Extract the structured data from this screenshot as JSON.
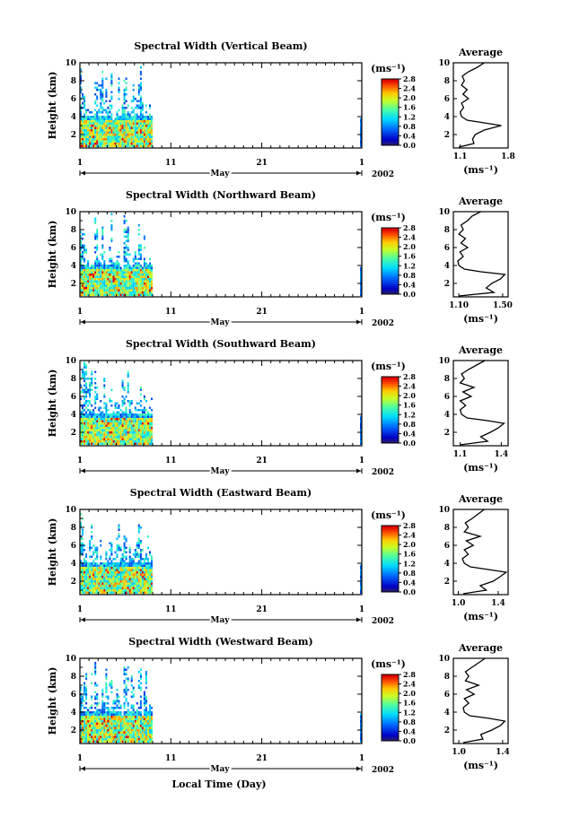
{
  "figure": {
    "time_axis_label": "Local Time (Day)",
    "month_label": "May",
    "year_label": "2002",
    "height_label": "Height (km)",
    "colorbar_unit": "(ms⁻¹)",
    "profile_title": "Average",
    "profile_xlabel": "(ms⁻¹)"
  },
  "chart_data": [
    {
      "type": "heatmap",
      "title": "Spectral Width (Vertical Beam)",
      "ylabel": "Height (km)",
      "ylim": [
        0.5,
        10
      ],
      "yticks": [
        2,
        4,
        6,
        8,
        10
      ],
      "xlim": [
        1,
        32
      ],
      "xticks": [
        "1",
        "11",
        "21",
        "1"
      ],
      "xlabel": "May",
      "year": "2002",
      "data_days": [
        [
          1,
          9
        ],
        [
          31.8,
          32
        ]
      ],
      "colorbar": {
        "unit": "(ms⁻¹)",
        "range": [
          0,
          2.8
        ],
        "ticks": [
          "0.0",
          "0.4",
          "0.8",
          "1.2",
          "1.6",
          "2.0",
          "2.4",
          "2.8"
        ]
      },
      "profile": {
        "type": "line",
        "title": "Average",
        "xlabel": "(ms⁻¹)",
        "xlim": [
          1.0,
          1.8
        ],
        "xticks": [
          "1.1",
          "1.8"
        ],
        "ylim": [
          0.5,
          10
        ],
        "yticks": [
          2,
          4,
          6,
          8,
          10
        ],
        "height": [
          0.6,
          1.0,
          1.5,
          2.0,
          2.5,
          3.0,
          3.3,
          3.6,
          4.0,
          4.5,
          5.0,
          5.5,
          6.0,
          6.5,
          7.0,
          7.5,
          8.0,
          8.5,
          9.0,
          9.5,
          10.0
        ],
        "value": [
          1.08,
          1.3,
          1.28,
          1.32,
          1.45,
          1.7,
          1.45,
          1.2,
          1.12,
          1.1,
          1.15,
          1.12,
          1.22,
          1.14,
          1.2,
          1.12,
          1.16,
          1.13,
          1.22,
          1.35,
          1.45
        ]
      }
    },
    {
      "type": "heatmap",
      "title": "Spectral Width (Northward Beam)",
      "ylabel": "Height (km)",
      "ylim": [
        0.5,
        10
      ],
      "yticks": [
        2,
        4,
        6,
        8,
        10
      ],
      "xlim": [
        1,
        32
      ],
      "xticks": [
        "1",
        "11",
        "21",
        "1"
      ],
      "xlabel": "May",
      "year": "2002",
      "data_days": [
        [
          1,
          9
        ],
        [
          31.8,
          32
        ]
      ],
      "colorbar": {
        "unit": "(ms⁻¹)",
        "range": [
          0,
          2.8
        ],
        "ticks": [
          "0.0",
          "0.4",
          "0.8",
          "1.2",
          "1.6",
          "2.0",
          "2.4",
          "2.8"
        ]
      },
      "profile": {
        "type": "line",
        "title": "Average",
        "xlabel": "(ms⁻¹)",
        "xlim": [
          1.05,
          1.55
        ],
        "xticks": [
          "1.10",
          "1.50"
        ],
        "ylim": [
          0.5,
          10
        ],
        "yticks": [
          2,
          4,
          6,
          8,
          10
        ],
        "height": [
          0.6,
          1.0,
          1.5,
          2.0,
          2.5,
          3.0,
          3.3,
          3.6,
          4.0,
          4.5,
          5.0,
          5.5,
          6.0,
          6.5,
          7.0,
          7.5,
          8.0,
          8.5,
          9.0,
          9.5,
          10.0
        ],
        "value": [
          1.1,
          1.42,
          1.35,
          1.4,
          1.48,
          1.52,
          1.3,
          1.15,
          1.1,
          1.09,
          1.14,
          1.11,
          1.18,
          1.12,
          1.16,
          1.1,
          1.14,
          1.12,
          1.18,
          1.22,
          1.3
        ]
      }
    },
    {
      "type": "heatmap",
      "title": "Spectral Width (Southward Beam)",
      "ylabel": "Height (km)",
      "ylim": [
        0.5,
        10
      ],
      "yticks": [
        2,
        4,
        6,
        8,
        10
      ],
      "xlim": [
        1,
        32
      ],
      "xticks": [
        "1",
        "11",
        "21",
        "1"
      ],
      "xlabel": "May",
      "year": "2002",
      "data_days": [
        [
          1,
          9
        ],
        [
          31.8,
          32
        ]
      ],
      "colorbar": {
        "unit": "(ms⁻¹)",
        "range": [
          0,
          2.8
        ],
        "ticks": [
          "0.0",
          "0.4",
          "0.8",
          "1.2",
          "1.6",
          "2.0",
          "2.4",
          "2.8"
        ]
      },
      "profile": {
        "type": "line",
        "title": "Average",
        "xlabel": "(ms⁻¹)",
        "xlim": [
          1.05,
          1.45
        ],
        "xticks": [
          "1.1",
          "1.4"
        ],
        "ylim": [
          0.5,
          10
        ],
        "yticks": [
          2,
          4,
          6,
          8,
          10
        ],
        "height": [
          0.6,
          1.0,
          1.5,
          2.0,
          2.5,
          3.0,
          3.3,
          3.6,
          4.0,
          4.5,
          5.0,
          5.5,
          6.0,
          6.5,
          7.0,
          7.5,
          8.0,
          8.5,
          9.0,
          9.5,
          10.0
        ],
        "value": [
          1.1,
          1.3,
          1.25,
          1.32,
          1.38,
          1.42,
          1.3,
          1.15,
          1.11,
          1.1,
          1.14,
          1.1,
          1.18,
          1.12,
          1.2,
          1.1,
          1.13,
          1.11,
          1.16,
          1.22,
          1.28
        ]
      }
    },
    {
      "type": "heatmap",
      "title": "Spectral Width (Eastward Beam)",
      "ylabel": "Height (km)",
      "ylim": [
        0.5,
        10
      ],
      "yticks": [
        2,
        4,
        6,
        8,
        10
      ],
      "xlim": [
        1,
        32
      ],
      "xticks": [
        "1",
        "11",
        "21",
        "1"
      ],
      "xlabel": "May",
      "year": "2002",
      "data_days": [
        [
          1,
          9
        ],
        [
          31.8,
          32
        ]
      ],
      "colorbar": {
        "unit": "(ms⁻¹)",
        "range": [
          0,
          2.8
        ],
        "ticks": [
          "0.0",
          "0.4",
          "0.8",
          "1.2",
          "1.6",
          "2.0",
          "2.4",
          "2.8"
        ]
      },
      "profile": {
        "type": "line",
        "title": "Average",
        "xlabel": "(ms⁻¹)",
        "xlim": [
          0.95,
          1.5
        ],
        "xticks": [
          "1.0",
          "1.4"
        ],
        "ylim": [
          0.5,
          10
        ],
        "yticks": [
          2,
          4,
          6,
          8,
          10
        ],
        "height": [
          0.6,
          1.0,
          1.5,
          2.0,
          2.5,
          3.0,
          3.3,
          3.6,
          4.0,
          4.5,
          5.0,
          5.5,
          6.0,
          6.5,
          7.0,
          7.5,
          8.0,
          8.5,
          9.0,
          9.5,
          10.0
        ],
        "value": [
          1.05,
          1.28,
          1.22,
          1.35,
          1.42,
          1.48,
          1.3,
          1.12,
          1.06,
          1.04,
          1.1,
          1.06,
          1.15,
          1.08,
          1.22,
          1.06,
          1.1,
          1.07,
          1.14,
          1.2,
          1.26
        ]
      }
    },
    {
      "type": "heatmap",
      "title": "Spectral Width (Westward Beam)",
      "ylabel": "Height (km)",
      "ylim": [
        0.5,
        10
      ],
      "yticks": [
        2,
        4,
        6,
        8,
        10
      ],
      "xlim": [
        1,
        32
      ],
      "xticks": [
        "1",
        "11",
        "21",
        "1"
      ],
      "xlabel": "May",
      "year": "2002",
      "data_days": [
        [
          1,
          9
        ],
        [
          31.8,
          32
        ]
      ],
      "colorbar": {
        "unit": "(ms⁻¹)",
        "range": [
          0,
          2.8
        ],
        "ticks": [
          "0.0",
          "0.4",
          "0.8",
          "1.2",
          "1.6",
          "2.0",
          "2.4",
          "2.8"
        ]
      },
      "profile": {
        "type": "line",
        "title": "Average",
        "xlabel": "(ms⁻¹)",
        "xlim": [
          0.95,
          1.45
        ],
        "xticks": [
          "1.0",
          "1.4"
        ],
        "ylim": [
          0.5,
          10
        ],
        "yticks": [
          2,
          4,
          6,
          8,
          10
        ],
        "height": [
          0.6,
          1.0,
          1.5,
          2.0,
          2.5,
          3.0,
          3.3,
          3.6,
          4.0,
          4.5,
          5.0,
          5.5,
          6.0,
          6.5,
          7.0,
          7.5,
          8.0,
          8.5,
          9.0,
          9.5,
          10.0
        ],
        "value": [
          1.04,
          1.22,
          1.2,
          1.3,
          1.38,
          1.42,
          1.28,
          1.1,
          1.05,
          1.04,
          1.09,
          1.05,
          1.14,
          1.07,
          1.18,
          1.06,
          1.09,
          1.06,
          1.12,
          1.18,
          1.24
        ]
      }
    }
  ]
}
